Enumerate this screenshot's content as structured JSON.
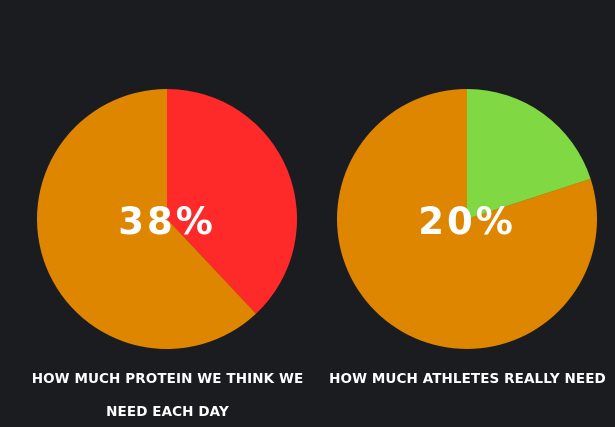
{
  "chart_data": [
    {
      "type": "pie",
      "center_label": "38%",
      "slices": [
        {
          "name": "",
          "value": 38,
          "color": "#fe2a2a"
        },
        {
          "name": "",
          "value": 62,
          "color": "#df8600"
        }
      ],
      "caption": "HOW MUCH PROTEIN WE THINK WE NEED EACH DAY"
    },
    {
      "type": "pie",
      "center_label": "20%",
      "slices": [
        {
          "name": "",
          "value": 20,
          "color": "#80d842"
        },
        {
          "name": "",
          "value": 80,
          "color": "#df8600"
        }
      ],
      "caption": "HOW MUCH ATHLETES REALLY NEED"
    }
  ],
  "colors": {
    "background": "#1b1c20",
    "label_text": "#ffffff"
  }
}
